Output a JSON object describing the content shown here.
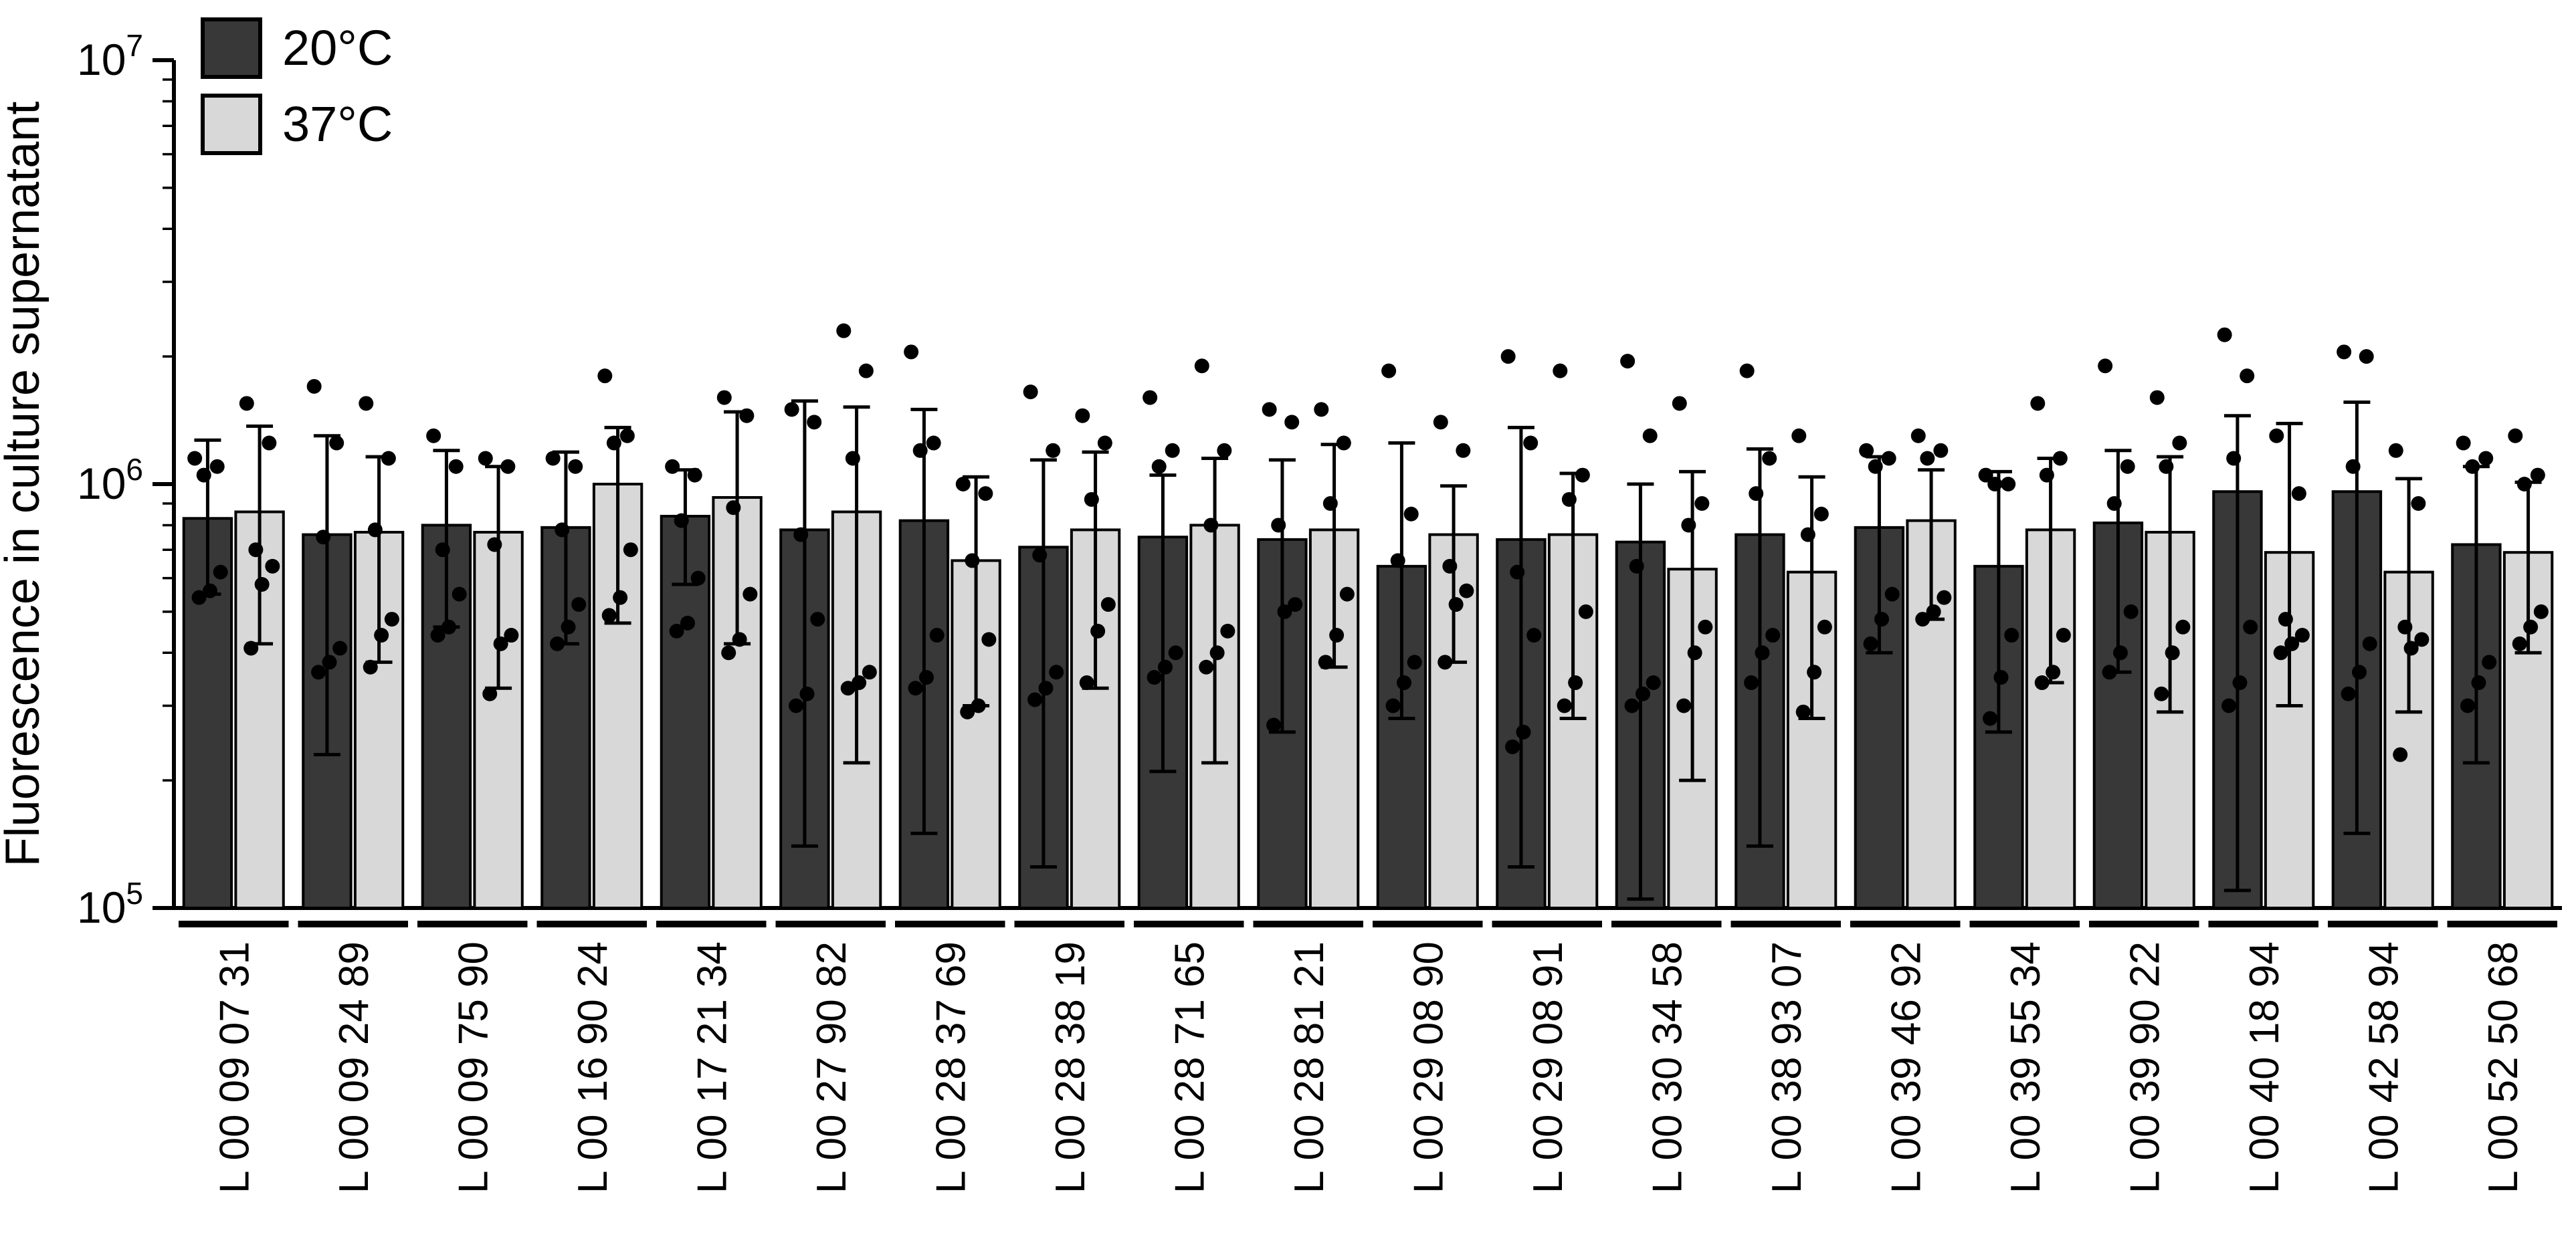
{
  "chart_data": {
    "type": "bar",
    "title": "",
    "xlabel": "",
    "ylabel": "Fluorescence in culture supernatant",
    "y_scale": "log",
    "ylim": [
      100000,
      10000000
    ],
    "grid": false,
    "legend_position": "top-left",
    "y_ticks": [
      {
        "value": 100000,
        "base": "10",
        "exp": "5"
      },
      {
        "value": 1000000,
        "base": "10",
        "exp": "6"
      },
      {
        "value": 10000000,
        "base": "10",
        "exp": "7"
      }
    ],
    "categories": [
      "L 00 09 07 31",
      "L 00 09 24 89",
      "L 00 09 75 90",
      "L 00 16 90 24",
      "L 00 17 21 34",
      "L 00 27 90 82",
      "L 00 28 37 69",
      "L 00 28 38 19",
      "L 00 28 71 65",
      "L 00 28 81 21",
      "L 00 29 08 90",
      "L 00 29 08 91",
      "L 00 30 34 58",
      "L 00 38 93 07",
      "L 00 39 46 92",
      "L 00 39 55 34",
      "L 00 39 90 22",
      "L 00 40 18 94",
      "L 00 42 58 94",
      "L 00 52 50 68"
    ],
    "series": [
      {
        "name": "20°C",
        "color": "#383838",
        "values": [
          830000,
          760000,
          800000,
          790000,
          840000,
          780000,
          820000,
          710000,
          750000,
          740000,
          640000,
          740000,
          730000,
          760000,
          790000,
          640000,
          810000,
          960000,
          960000,
          720000
        ],
        "err_hi": [
          1270000,
          1300000,
          1200000,
          1190000,
          1080000,
          1570000,
          1500000,
          1140000,
          1050000,
          1140000,
          1250000,
          1360000,
          1000000,
          1210000,
          1160000,
          1070000,
          1200000,
          1450000,
          1560000,
          1100000
        ],
        "err_lo": [
          550000,
          230000,
          460000,
          420000,
          580000,
          140000,
          150000,
          125000,
          210000,
          260000,
          280000,
          125000,
          105000,
          140000,
          400000,
          260000,
          360000,
          110000,
          150000,
          220000
        ],
        "points": [
          [
            1150000,
            1100000,
            1050000,
            620000,
            560000,
            540000
          ],
          [
            1700000,
            1250000,
            750000,
            410000,
            380000,
            360000
          ],
          [
            1300000,
            1100000,
            700000,
            550000,
            460000,
            440000
          ],
          [
            1150000,
            1100000,
            780000,
            520000,
            460000,
            420000
          ],
          [
            1100000,
            1050000,
            820000,
            600000,
            470000,
            450000
          ],
          [
            1500000,
            1400000,
            760000,
            480000,
            320000,
            300000
          ],
          [
            2050000,
            1250000,
            1200000,
            440000,
            350000,
            330000
          ],
          [
            1650000,
            1200000,
            680000,
            360000,
            330000,
            310000
          ],
          [
            1600000,
            1200000,
            1100000,
            400000,
            370000,
            350000
          ],
          [
            1500000,
            1400000,
            800000,
            520000,
            500000,
            270000
          ],
          [
            1850000,
            850000,
            660000,
            380000,
            340000,
            300000
          ],
          [
            2000000,
            1250000,
            620000,
            440000,
            260000,
            240000
          ],
          [
            1950000,
            1300000,
            640000,
            340000,
            320000,
            300000
          ],
          [
            1850000,
            1150000,
            950000,
            440000,
            400000,
            340000
          ],
          [
            1200000,
            1150000,
            1100000,
            550000,
            480000,
            420000
          ],
          [
            1050000,
            1000000,
            1000000,
            440000,
            350000,
            280000
          ],
          [
            1900000,
            1100000,
            900000,
            500000,
            400000,
            360000
          ],
          [
            2250000,
            1800000,
            1150000,
            460000,
            340000,
            300000
          ],
          [
            2050000,
            2000000,
            1100000,
            420000,
            360000,
            320000
          ],
          [
            1250000,
            1150000,
            1100000,
            380000,
            340000,
            300000
          ]
        ]
      },
      {
        "name": "37°C",
        "color": "#d8d8d8",
        "values": [
          860000,
          770000,
          770000,
          1000000,
          930000,
          860000,
          660000,
          780000,
          800000,
          780000,
          760000,
          760000,
          630000,
          620000,
          820000,
          780000,
          770000,
          690000,
          620000,
          690000
        ],
        "err_hi": [
          1370000,
          1160000,
          1100000,
          1360000,
          1480000,
          1520000,
          1040000,
          1190000,
          1150000,
          1240000,
          990000,
          1060000,
          1070000,
          1040000,
          1080000,
          1150000,
          1160000,
          1390000,
          1030000,
          1010000
        ],
        "err_lo": [
          420000,
          380000,
          330000,
          470000,
          420000,
          220000,
          300000,
          330000,
          220000,
          370000,
          380000,
          280000,
          200000,
          280000,
          480000,
          340000,
          290000,
          300000,
          290000,
          400000
        ],
        "points": [
          [
            1550000,
            1250000,
            700000,
            640000,
            580000,
            410000
          ],
          [
            1550000,
            1150000,
            780000,
            480000,
            440000,
            370000
          ],
          [
            1150000,
            1100000,
            720000,
            440000,
            420000,
            320000
          ],
          [
            1800000,
            1300000,
            1250000,
            700000,
            540000,
            490000
          ],
          [
            1600000,
            1450000,
            880000,
            550000,
            430000,
            400000
          ],
          [
            2300000,
            1850000,
            1150000,
            360000,
            340000,
            330000
          ],
          [
            1000000,
            950000,
            660000,
            430000,
            300000,
            290000
          ],
          [
            1450000,
            1250000,
            920000,
            520000,
            450000,
            340000
          ],
          [
            1900000,
            1200000,
            800000,
            450000,
            400000,
            370000
          ],
          [
            1500000,
            1250000,
            900000,
            550000,
            440000,
            380000
          ],
          [
            1400000,
            1200000,
            640000,
            560000,
            520000,
            380000
          ],
          [
            1850000,
            1050000,
            920000,
            500000,
            340000,
            300000
          ],
          [
            1550000,
            900000,
            800000,
            460000,
            400000,
            300000
          ],
          [
            1300000,
            850000,
            760000,
            460000,
            360000,
            290000
          ],
          [
            1300000,
            1200000,
            1150000,
            540000,
            500000,
            480000
          ],
          [
            1550000,
            1150000,
            1050000,
            440000,
            360000,
            340000
          ],
          [
            1600000,
            1250000,
            1100000,
            460000,
            400000,
            320000
          ],
          [
            1300000,
            950000,
            480000,
            440000,
            420000,
            400000
          ],
          [
            1200000,
            900000,
            460000,
            430000,
            410000,
            230000
          ],
          [
            1300000,
            1050000,
            1000000,
            500000,
            460000,
            420000
          ]
        ]
      }
    ]
  }
}
